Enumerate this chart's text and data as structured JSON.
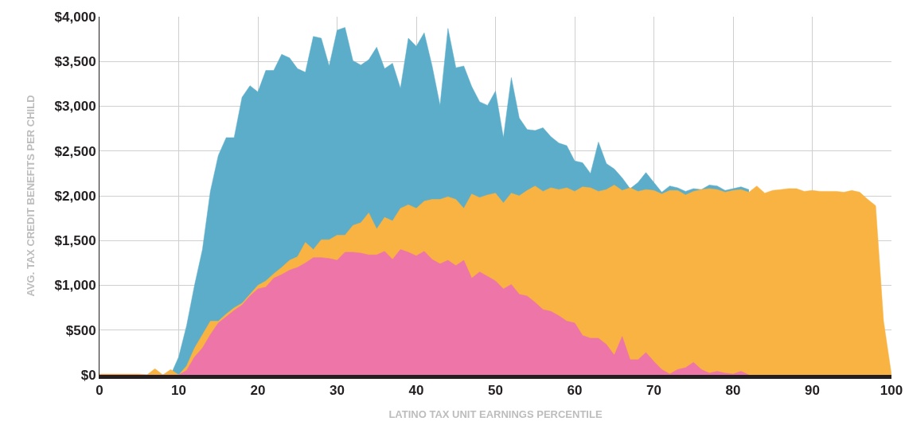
{
  "chart_data": {
    "type": "area",
    "xlabel": "LATINO TAX UNIT EARNINGS PERCENTILE",
    "ylabel": "AVG. TAX CREDIT BENEFITS PER CHILD",
    "xlim": [
      0,
      100
    ],
    "xticks": [
      0,
      10,
      20,
      30,
      40,
      50,
      60,
      70,
      80,
      90,
      100
    ],
    "ylim": [
      0,
      4000
    ],
    "yticks": [
      {
        "value": 0,
        "label": "$0"
      },
      {
        "value": 500,
        "label": "$500"
      },
      {
        "value": 1000,
        "label": "$1,000"
      },
      {
        "value": 1500,
        "label": "$1,500"
      },
      {
        "value": 2000,
        "label": "$2,000"
      },
      {
        "value": 2500,
        "label": "$2,500"
      },
      {
        "value": 3000,
        "label": "$3,000"
      },
      {
        "value": 3500,
        "label": "$3,500"
      },
      {
        "value": 4000,
        "label": "$4,000"
      }
    ],
    "grid": true,
    "series": [
      {
        "color": "#5badc9",
        "x": [
          0,
          1,
          2,
          3,
          4,
          5,
          6,
          7,
          8,
          9,
          10,
          11,
          12,
          13,
          14,
          15,
          16,
          17,
          18,
          19,
          20,
          21,
          22,
          23,
          24,
          25,
          26,
          27,
          28,
          29,
          30,
          31,
          32,
          33,
          34,
          35,
          36,
          37,
          38,
          39,
          40,
          41,
          42,
          43,
          44,
          45,
          46,
          47,
          48,
          49,
          50,
          51,
          52,
          53,
          54,
          55,
          56,
          57,
          58,
          59,
          60,
          61,
          62,
          63,
          64,
          65,
          66,
          67,
          68,
          69,
          70,
          71,
          72,
          73,
          74,
          75,
          76,
          77,
          78,
          79,
          80,
          81,
          82
        ],
        "values": [
          0,
          0,
          0,
          0,
          0,
          0,
          0,
          0,
          0,
          0,
          200,
          550,
          1000,
          1400,
          2050,
          2450,
          2650,
          2650,
          3100,
          3230,
          3160,
          3400,
          3400,
          3580,
          3540,
          3420,
          3380,
          3780,
          3760,
          3450,
          3850,
          3880,
          3510,
          3460,
          3520,
          3660,
          3420,
          3480,
          3200,
          3760,
          3670,
          3820,
          3450,
          3010,
          3870,
          3430,
          3450,
          3220,
          3050,
          3010,
          3170,
          2650,
          3320,
          2870,
          2740,
          2730,
          2760,
          2660,
          2590,
          2560,
          2390,
          2370,
          2250,
          2600,
          2360,
          2300,
          2200,
          2080,
          2150,
          2260,
          2150,
          2040,
          2110,
          2090,
          2050,
          2080,
          2070,
          2120,
          2110,
          2060,
          2080,
          2100,
          2070
        ]
      },
      {
        "color": "#f8b342",
        "x": [
          0,
          1,
          2,
          3,
          4,
          5,
          6,
          7,
          8,
          9,
          10,
          11,
          12,
          13,
          14,
          15,
          16,
          17,
          18,
          19,
          20,
          21,
          22,
          23,
          24,
          25,
          26,
          27,
          28,
          29,
          30,
          31,
          32,
          33,
          34,
          35,
          36,
          37,
          38,
          39,
          40,
          41,
          42,
          43,
          44,
          45,
          46,
          47,
          48,
          49,
          50,
          51,
          52,
          53,
          54,
          55,
          56,
          57,
          58,
          59,
          60,
          61,
          62,
          63,
          64,
          65,
          66,
          67,
          68,
          69,
          70,
          71,
          72,
          73,
          74,
          75,
          76,
          77,
          78,
          79,
          80,
          81,
          82,
          83,
          84,
          85,
          86,
          87,
          88,
          89,
          90,
          91,
          92,
          93,
          94,
          95,
          96,
          97,
          98,
          99,
          100
        ],
        "values": [
          10,
          10,
          10,
          10,
          10,
          10,
          0,
          70,
          0,
          60,
          0,
          100,
          300,
          450,
          600,
          600,
          680,
          750,
          800,
          900,
          1000,
          1050,
          1130,
          1200,
          1280,
          1320,
          1480,
          1400,
          1510,
          1510,
          1560,
          1560,
          1670,
          1700,
          1810,
          1630,
          1760,
          1720,
          1860,
          1900,
          1860,
          1940,
          1960,
          1960,
          1990,
          1960,
          1860,
          2020,
          1980,
          2010,
          2030,
          1920,
          2030,
          2000,
          2060,
          2110,
          2050,
          2090,
          2070,
          2090,
          2050,
          2100,
          2090,
          2050,
          2070,
          2120,
          2060,
          2090,
          2050,
          2070,
          2060,
          2020,
          2060,
          2060,
          2010,
          2050,
          2070,
          2080,
          2070,
          2040,
          2060,
          2070,
          2040,
          2110,
          2030,
          2060,
          2070,
          2080,
          2080,
          2050,
          2060,
          2050,
          2050,
          2050,
          2040,
          2060,
          2040,
          1960,
          1890,
          600,
          0
        ]
      },
      {
        "color": "#ed75a8",
        "x": [
          0,
          1,
          2,
          3,
          4,
          5,
          6,
          7,
          8,
          9,
          10,
          11,
          12,
          13,
          14,
          15,
          16,
          17,
          18,
          19,
          20,
          21,
          22,
          23,
          24,
          25,
          26,
          27,
          28,
          29,
          30,
          31,
          32,
          33,
          34,
          35,
          36,
          37,
          38,
          39,
          40,
          41,
          42,
          43,
          44,
          45,
          46,
          47,
          48,
          49,
          50,
          51,
          52,
          53,
          54,
          55,
          56,
          57,
          58,
          59,
          60,
          61,
          62,
          63,
          64,
          65,
          66,
          67,
          68,
          69,
          70,
          71,
          72,
          73,
          74,
          75,
          76,
          77,
          78,
          79,
          80,
          81,
          82
        ],
        "values": [
          0,
          0,
          0,
          0,
          0,
          0,
          0,
          0,
          0,
          0,
          0,
          50,
          200,
          300,
          450,
          580,
          650,
          720,
          780,
          880,
          960,
          980,
          1080,
          1120,
          1170,
          1200,
          1250,
          1310,
          1310,
          1300,
          1280,
          1370,
          1370,
          1360,
          1340,
          1340,
          1380,
          1290,
          1400,
          1370,
          1330,
          1380,
          1290,
          1240,
          1280,
          1220,
          1280,
          1080,
          1150,
          1100,
          1050,
          960,
          1010,
          900,
          880,
          810,
          730,
          710,
          660,
          600,
          580,
          440,
          410,
          410,
          340,
          220,
          430,
          170,
          170,
          250,
          150,
          60,
          10,
          60,
          80,
          140,
          60,
          20,
          40,
          20,
          10,
          40,
          0
        ]
      }
    ]
  }
}
